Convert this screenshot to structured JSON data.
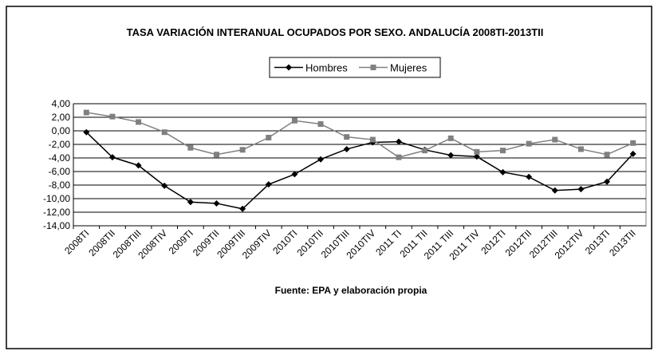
{
  "chart_data": {
    "type": "line",
    "title": "TASA VARIACIÓN INTERANUAL OCUPADOS POR SEXO. ANDALUCÍA 2008TI-2013TII",
    "source": "Fuente: EPA y elaboración propia",
    "categories": [
      "2008TI",
      "2008TII",
      "2008TIII",
      "2008TIV",
      "2009TI",
      "2009TII",
      "2009TIII",
      "2009TIV",
      "2010TI",
      "2010TII",
      "2010TIII",
      "2010TIV",
      "2011 TI",
      "2011 TII",
      "2011 TIII",
      "2011 TIV",
      "2012TI",
      "2012TII",
      "2012TIII",
      "2012TIV",
      "2013TI",
      "2013TII"
    ],
    "series": [
      {
        "name": "Hombres",
        "color": "#000000",
        "marker": "diamond",
        "values": [
          -0.2,
          -3.9,
          -5.1,
          -8.1,
          -10.5,
          -10.7,
          -11.5,
          -7.9,
          -6.4,
          -4.2,
          -2.7,
          -1.7,
          -1.6,
          -2.8,
          -3.6,
          -3.8,
          -6.1,
          -6.8,
          -8.8,
          -8.6,
          -7.5,
          -3.4
        ]
      },
      {
        "name": "Mujeres",
        "color": "#808080",
        "marker": "square",
        "values": [
          2.7,
          2.1,
          1.3,
          -0.2,
          -2.5,
          -3.5,
          -2.8,
          -1.0,
          1.5,
          1.0,
          -0.9,
          -1.3,
          -3.9,
          -2.9,
          -1.1,
          -3.1,
          -2.9,
          -1.9,
          -1.3,
          -2.7,
          -3.5,
          -1.8
        ]
      }
    ],
    "ylim": [
      -14,
      4
    ],
    "yticks": [
      {
        "value": -14,
        "label": "-14,00"
      },
      {
        "value": -12,
        "label": "-12,00"
      },
      {
        "value": -10,
        "label": "-10,00"
      },
      {
        "value": -8,
        "label": "-8,00"
      },
      {
        "value": -6,
        "label": "-6,00"
      },
      {
        "value": -4,
        "label": "-4,00"
      },
      {
        "value": -2,
        "label": "-2,00"
      },
      {
        "value": 0,
        "label": "0,00"
      },
      {
        "value": 2,
        "label": "2,00"
      },
      {
        "value": 4,
        "label": "4,00"
      }
    ],
    "grid": true,
    "legend": "top"
  }
}
